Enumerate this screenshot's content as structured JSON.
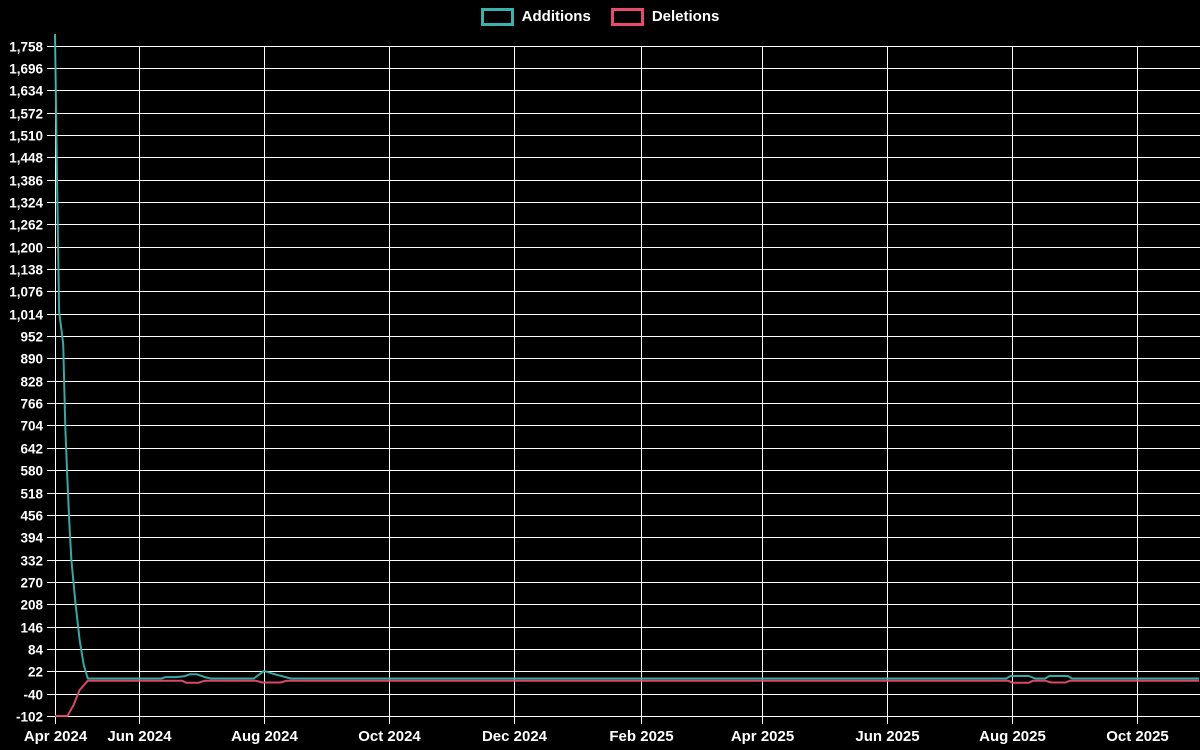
{
  "chart_data": {
    "type": "line",
    "title": "",
    "background_color": "#000000",
    "grid_color": "#ffffff",
    "text_color": "#ffffff",
    "grid": true,
    "legend_position": "top-center",
    "legend": [
      {
        "name": "Additions",
        "color": "#38b2ac"
      },
      {
        "name": "Deletions",
        "color": "#e84a6e"
      }
    ],
    "x_axis": {
      "start": "2024-04-21",
      "end": "2025-10-31",
      "ticks": [
        {
          "date": "2024-04-21",
          "label": "Apr 2024"
        },
        {
          "date": "2024-06-01",
          "label": "Jun 2024"
        },
        {
          "date": "2024-08-01",
          "label": "Aug 2024"
        },
        {
          "date": "2024-10-01",
          "label": "Oct 2024"
        },
        {
          "date": "2024-12-01",
          "label": "Dec 2024"
        },
        {
          "date": "2025-02-01",
          "label": "Feb 2025"
        },
        {
          "date": "2025-04-01",
          "label": "Apr 2025"
        },
        {
          "date": "2025-06-01",
          "label": "Jun 2025"
        },
        {
          "date": "2025-08-01",
          "label": "Aug 2025"
        },
        {
          "date": "2025-10-01",
          "label": "Oct 2025"
        }
      ]
    },
    "y_axis": {
      "min": -102,
      "max": 1790,
      "tick_step": 62,
      "tick_labels": [
        "1,758",
        "1,696",
        "1,634",
        "1,572",
        "1,510",
        "1,448",
        "1,386",
        "1,324",
        "1,262",
        "1,200",
        "1,138",
        "1,076",
        "1,014",
        "952",
        "890",
        "828",
        "766",
        "704",
        "642",
        "580",
        "518",
        "456",
        "394",
        "332",
        "270",
        "208",
        "146",
        "84",
        "22",
        "-40",
        "-102"
      ]
    },
    "series": [
      {
        "name": "Additions",
        "color": "#38b2ac",
        "points": [
          [
            "2024-04-21",
            1790
          ],
          [
            "2024-04-22",
            1380
          ],
          [
            "2024-04-23",
            1020
          ],
          [
            "2024-04-25",
            930
          ],
          [
            "2024-04-26",
            700
          ],
          [
            "2024-04-27",
            560
          ],
          [
            "2024-04-28",
            430
          ],
          [
            "2024-04-29",
            330
          ],
          [
            "2024-05-01",
            210
          ],
          [
            "2024-05-03",
            110
          ],
          [
            "2024-05-05",
            40
          ],
          [
            "2024-05-07",
            2
          ],
          [
            "2024-06-12",
            2
          ],
          [
            "2024-06-14",
            6
          ],
          [
            "2024-06-19",
            6
          ],
          [
            "2024-06-23",
            8
          ],
          [
            "2024-06-26",
            14
          ],
          [
            "2024-06-29",
            14
          ],
          [
            "2024-07-03",
            6
          ],
          [
            "2024-07-06",
            2
          ],
          [
            "2024-07-27",
            2
          ],
          [
            "2024-08-01",
            23
          ],
          [
            "2024-08-06",
            14
          ],
          [
            "2024-08-14",
            2
          ],
          [
            "2025-07-29",
            2
          ],
          [
            "2025-07-31",
            9
          ],
          [
            "2025-08-09",
            9
          ],
          [
            "2025-08-12",
            2
          ],
          [
            "2025-08-17",
            2
          ],
          [
            "2025-08-19",
            9
          ],
          [
            "2025-08-28",
            9
          ],
          [
            "2025-08-30",
            2
          ],
          [
            "2025-10-31",
            2
          ]
        ]
      },
      {
        "name": "Deletions",
        "color": "#e84a6e",
        "points": [
          [
            "2024-04-21",
            -102
          ],
          [
            "2024-04-27",
            -102
          ],
          [
            "2024-04-30",
            -72
          ],
          [
            "2024-05-03",
            -30
          ],
          [
            "2024-05-07",
            -4
          ],
          [
            "2024-06-22",
            -4
          ],
          [
            "2024-06-24",
            -10
          ],
          [
            "2024-06-30",
            -10
          ],
          [
            "2024-07-03",
            -4
          ],
          [
            "2024-07-28",
            -4
          ],
          [
            "2024-07-31",
            -9
          ],
          [
            "2024-08-09",
            -9
          ],
          [
            "2024-08-12",
            -4
          ],
          [
            "2025-07-30",
            -4
          ],
          [
            "2025-08-01",
            -10
          ],
          [
            "2025-08-09",
            -10
          ],
          [
            "2025-08-11",
            -4
          ],
          [
            "2025-08-17",
            -4
          ],
          [
            "2025-08-20",
            -9
          ],
          [
            "2025-08-27",
            -9
          ],
          [
            "2025-08-29",
            -4
          ],
          [
            "2025-10-31",
            -4
          ]
        ]
      }
    ]
  }
}
